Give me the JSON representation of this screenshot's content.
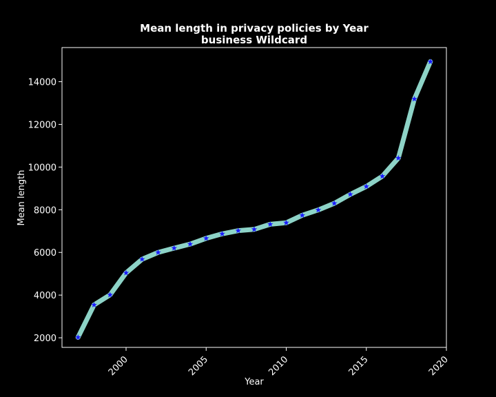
{
  "chart_data": {
    "type": "line",
    "title": "Mean length in privacy policies by Year",
    "subtitle": "business Wildcard",
    "xlabel": "Year",
    "ylabel": "Mean length",
    "xlim": [
      1996,
      2020
    ],
    "ylim": [
      1550,
      15600
    ],
    "xticks": [
      2000,
      2005,
      2010,
      2015,
      2020
    ],
    "yticks": [
      2000,
      4000,
      6000,
      8000,
      10000,
      12000,
      14000
    ],
    "grid": false,
    "legend": "none",
    "series": [
      {
        "x": [
          1997,
          1998,
          1999,
          2000,
          2001,
          2002,
          2003,
          2004,
          2005,
          2006,
          2007,
          2008,
          2009,
          2010,
          2011,
          2012,
          2013,
          2014,
          2015,
          2016,
          2017,
          2018,
          2019
        ],
        "values": [
          2020,
          3540,
          4010,
          5040,
          5680,
          6000,
          6200,
          6390,
          6660,
          6870,
          7020,
          7080,
          7320,
          7390,
          7740,
          7990,
          8300,
          8720,
          9090,
          9570,
          10420,
          13190,
          14940
        ],
        "line_color": "#8dd3c7",
        "marker": "star",
        "marker_color": "#1a1aff"
      }
    ]
  },
  "colors": {
    "background": "#000000",
    "foreground": "#ffffff",
    "line": "#8dd3c7",
    "marker": "#1a1aff"
  }
}
